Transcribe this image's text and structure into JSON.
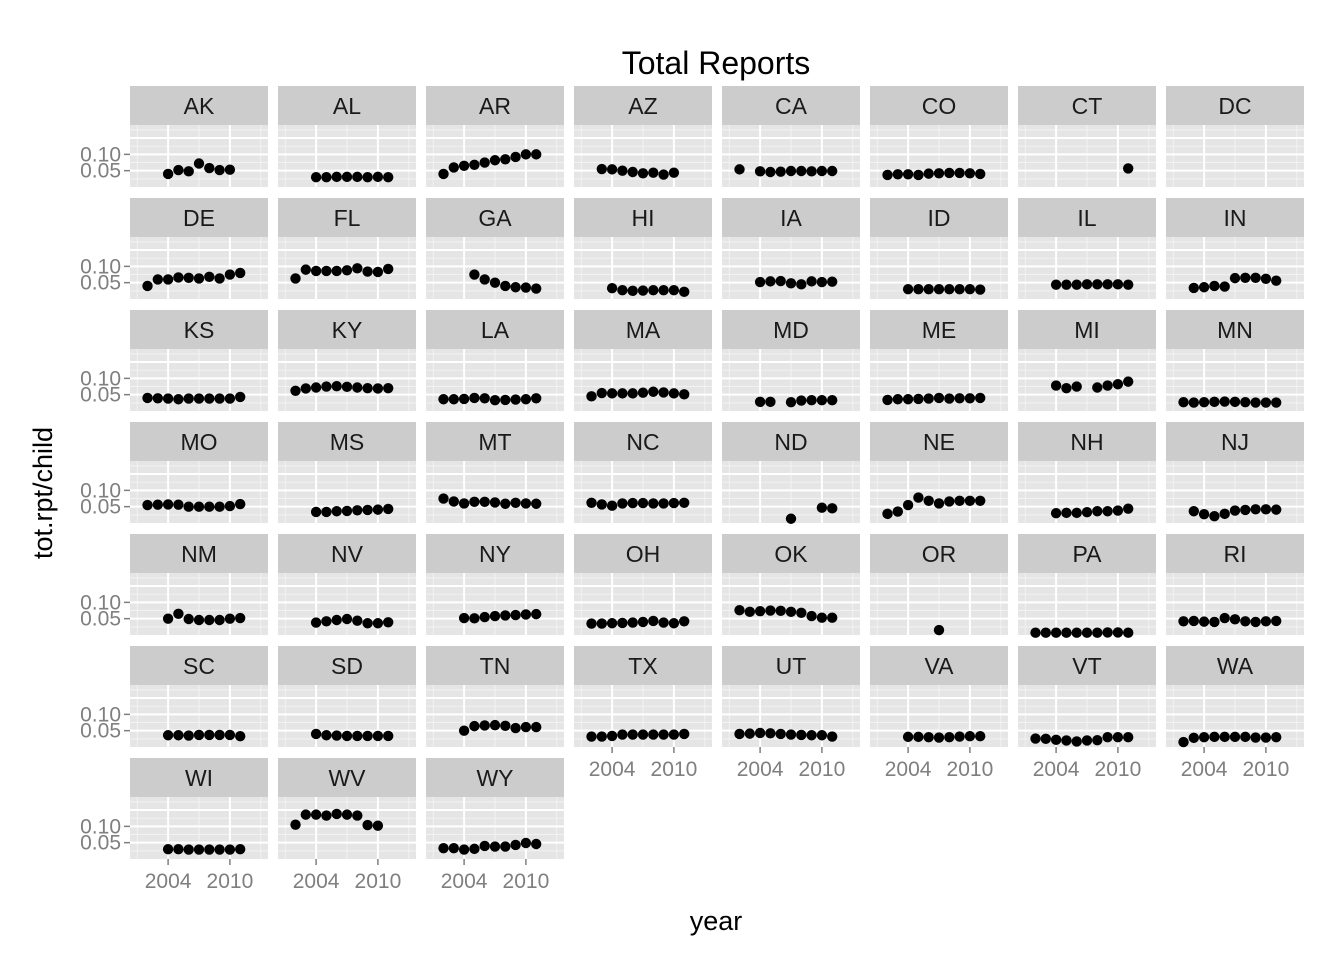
{
  "chart_data": {
    "type": "scatter",
    "title": "Total Reports",
    "xlabel": "year",
    "ylabel": "tot.rpt/child",
    "x_ticks": [
      2004,
      2010
    ],
    "y_ticks": [
      0.05,
      0.1
    ],
    "y_tick_labels": [
      "0.05",
      "0.10"
    ],
    "x_tick_labels": [
      "2004",
      "2010"
    ],
    "xlim": [
      2000.3,
      2013.7
    ],
    "ylim": [
      0.0,
      0.19
    ],
    "layout": "facet_wrap, 8 columns",
    "panel_background": "#e5e5e5",
    "strip_background": "#cccccc",
    "point_color": "#000000",
    "facets": [
      {
        "label": "AK",
        "years": [
          2003,
          2004,
          2005,
          2006,
          2007,
          2008,
          2009,
          2010,
          2011,
          2012
        ],
        "values": [
          null,
          0.04,
          0.052,
          0.048,
          0.072,
          0.058,
          0.052,
          0.053,
          null,
          null
        ]
      },
      {
        "label": "AL",
        "years": [
          2004,
          2005,
          2006,
          2007,
          2008,
          2009,
          2010,
          2011
        ],
        "values": [
          0.03,
          0.03,
          0.031,
          0.031,
          0.031,
          0.03,
          0.031,
          0.03
        ]
      },
      {
        "label": "AR",
        "years": [
          2002,
          2003,
          2004,
          2005,
          2006,
          2007,
          2008,
          2009,
          2010,
          2011
        ],
        "values": [
          0.04,
          0.06,
          0.065,
          0.068,
          0.075,
          0.082,
          0.085,
          0.092,
          0.1,
          0.1
        ]
      },
      {
        "label": "AZ",
        "years": [
          2003,
          2004,
          2005,
          2006,
          2007,
          2008,
          2009,
          2010
        ],
        "values": [
          0.055,
          0.054,
          0.05,
          0.046,
          0.042,
          0.044,
          0.038,
          0.044
        ]
      },
      {
        "label": "CA",
        "years": [
          2002,
          2004,
          2005,
          2006,
          2007,
          2008,
          2009,
          2010,
          2011
        ],
        "values": [
          0.054,
          0.048,
          0.046,
          0.047,
          0.049,
          0.049,
          0.048,
          0.049,
          0.049
        ]
      },
      {
        "label": "CO",
        "years": [
          2002,
          2003,
          2004,
          2005,
          2006,
          2007,
          2008,
          2009,
          2010,
          2011
        ],
        "values": [
          0.037,
          0.039,
          0.039,
          0.037,
          0.041,
          0.042,
          0.043,
          0.043,
          0.042,
          0.04
        ]
      },
      {
        "label": "CT",
        "years": [
          2011
        ],
        "values": [
          0.057
        ]
      },
      {
        "label": "DC",
        "years": [],
        "values": []
      },
      {
        "label": "DE",
        "years": [
          2002,
          2003,
          2004,
          2005,
          2006,
          2007,
          2008,
          2009,
          2010,
          2011
        ],
        "values": [
          0.04,
          0.06,
          0.06,
          0.066,
          0.065,
          0.063,
          0.068,
          0.063,
          0.075,
          0.08
        ]
      },
      {
        "label": "FL",
        "years": [
          2002,
          2003,
          2004,
          2005,
          2006,
          2007,
          2008,
          2009,
          2010,
          2011
        ],
        "values": [
          0.063,
          0.09,
          0.086,
          0.086,
          0.086,
          0.088,
          0.094,
          0.084,
          0.083,
          0.092
        ]
      },
      {
        "label": "GA",
        "years": [
          2005,
          2006,
          2007,
          2008,
          2009,
          2010,
          2011
        ],
        "values": [
          0.075,
          0.06,
          0.05,
          0.04,
          0.036,
          0.035,
          0.032
        ]
      },
      {
        "label": "HI",
        "years": [
          2004,
          2005,
          2006,
          2007,
          2008,
          2009,
          2010,
          2011
        ],
        "values": [
          0.033,
          0.027,
          0.025,
          0.026,
          0.027,
          0.027,
          0.027,
          0.022
        ]
      },
      {
        "label": "IA",
        "years": [
          2004,
          2005,
          2006,
          2007,
          2008,
          2009,
          2010,
          2011
        ],
        "values": [
          0.052,
          0.054,
          0.055,
          0.048,
          0.045,
          0.054,
          0.052,
          0.053
        ]
      },
      {
        "label": "ID",
        "years": [
          2004,
          2005,
          2006,
          2007,
          2008,
          2009,
          2010,
          2011
        ],
        "values": [
          0.03,
          0.03,
          0.03,
          0.03,
          0.03,
          0.03,
          0.03,
          0.029
        ]
      },
      {
        "label": "IL",
        "years": [
          2004,
          2005,
          2006,
          2007,
          2008,
          2009,
          2010,
          2011
        ],
        "values": [
          0.044,
          0.044,
          0.044,
          0.045,
          0.045,
          0.045,
          0.045,
          0.044
        ]
      },
      {
        "label": "IN",
        "years": [
          2003,
          2004,
          2005,
          2006,
          2007,
          2008,
          2009,
          2010,
          2011
        ],
        "values": [
          0.034,
          0.036,
          0.04,
          0.038,
          0.064,
          0.065,
          0.065,
          0.062,
          0.056
        ]
      },
      {
        "label": "KS",
        "years": [
          2002,
          2003,
          2004,
          2005,
          2006,
          2007,
          2008,
          2009,
          2010,
          2011
        ],
        "values": [
          0.04,
          0.039,
          0.038,
          0.036,
          0.038,
          0.038,
          0.038,
          0.038,
          0.038,
          0.043
        ]
      },
      {
        "label": "KY",
        "years": [
          2002,
          2003,
          2004,
          2005,
          2006,
          2007,
          2008,
          2009,
          2010,
          2011
        ],
        "values": [
          0.062,
          0.069,
          0.072,
          0.075,
          0.076,
          0.074,
          0.072,
          0.07,
          0.069,
          0.07
        ]
      },
      {
        "label": "LA",
        "years": [
          2002,
          2003,
          2004,
          2005,
          2006,
          2007,
          2008,
          2009,
          2010,
          2011
        ],
        "values": [
          0.036,
          0.036,
          0.037,
          0.04,
          0.039,
          0.033,
          0.034,
          0.035,
          0.036,
          0.039
        ]
      },
      {
        "label": "MA",
        "years": [
          2002,
          2003,
          2004,
          2005,
          2006,
          2007,
          2008,
          2009,
          2010,
          2011
        ],
        "values": [
          0.045,
          0.055,
          0.054,
          0.054,
          0.054,
          0.056,
          0.059,
          0.057,
          0.054,
          0.051
        ]
      },
      {
        "label": "MD",
        "years": [
          2004,
          2005,
          2007,
          2008,
          2009,
          2010,
          2011
        ],
        "values": [
          0.028,
          0.028,
          0.027,
          0.032,
          0.033,
          0.033,
          0.033
        ]
      },
      {
        "label": "ME",
        "years": [
          2002,
          2003,
          2004,
          2005,
          2006,
          2007,
          2008,
          2009,
          2010,
          2011
        ],
        "values": [
          0.034,
          0.036,
          0.036,
          0.037,
          0.038,
          0.04,
          0.038,
          0.039,
          0.039,
          0.04
        ]
      },
      {
        "label": "MI",
        "years": [
          2004,
          2005,
          2006,
          2008,
          2009,
          2010,
          2011
        ],
        "values": [
          0.078,
          0.07,
          0.075,
          0.072,
          0.078,
          0.082,
          0.09
        ]
      },
      {
        "label": "MN",
        "years": [
          2002,
          2003,
          2004,
          2005,
          2006,
          2007,
          2008,
          2009,
          2010,
          2011
        ],
        "values": [
          0.027,
          0.026,
          0.027,
          0.028,
          0.029,
          0.028,
          0.027,
          0.026,
          0.026,
          0.026
        ]
      },
      {
        "label": "MO",
        "years": [
          2002,
          2003,
          2004,
          2005,
          2006,
          2007,
          2008,
          2009,
          2010,
          2011
        ],
        "values": [
          0.055,
          0.056,
          0.057,
          0.056,
          0.05,
          0.05,
          0.05,
          0.05,
          0.052,
          0.058
        ]
      },
      {
        "label": "MS",
        "years": [
          2004,
          2005,
          2006,
          2007,
          2008,
          2009,
          2010,
          2011
        ],
        "values": [
          0.034,
          0.034,
          0.036,
          0.037,
          0.039,
          0.04,
          0.041,
          0.043
        ]
      },
      {
        "label": "MT",
        "years": [
          2002,
          2003,
          2004,
          2005,
          2006,
          2007,
          2008,
          2009,
          2010,
          2011
        ],
        "values": [
          0.075,
          0.066,
          0.06,
          0.065,
          0.065,
          0.063,
          0.059,
          0.062,
          0.06,
          0.059
        ]
      },
      {
        "label": "NC",
        "years": [
          2002,
          2003,
          2004,
          2005,
          2006,
          2007,
          2008,
          2009,
          2010,
          2011
        ],
        "values": [
          0.062,
          0.057,
          0.053,
          0.06,
          0.061,
          0.061,
          0.06,
          0.06,
          0.061,
          0.062
        ]
      },
      {
        "label": "ND",
        "years": [
          2007,
          2010,
          2011
        ],
        "values": [
          0.013,
          0.047,
          0.045
        ]
      },
      {
        "label": "NE",
        "years": [
          2002,
          2003,
          2004,
          2005,
          2006,
          2007,
          2008,
          2009,
          2010,
          2011
        ],
        "values": [
          0.028,
          0.035,
          0.055,
          0.078,
          0.068,
          0.06,
          0.066,
          0.068,
          0.068,
          0.068
        ]
      },
      {
        "label": "NH",
        "years": [
          2004,
          2005,
          2006,
          2007,
          2008,
          2009,
          2010,
          2011
        ],
        "values": [
          0.03,
          0.031,
          0.031,
          0.033,
          0.036,
          0.036,
          0.038,
          0.044
        ]
      },
      {
        "label": "NJ",
        "years": [
          2003,
          2004,
          2005,
          2006,
          2007,
          2008,
          2009,
          2010,
          2011
        ],
        "values": [
          0.036,
          0.027,
          0.021,
          0.028,
          0.038,
          0.04,
          0.042,
          0.042,
          0.041
        ]
      },
      {
        "label": "NM",
        "years": [
          2004,
          2005,
          2006,
          2007,
          2008,
          2009,
          2010,
          2011
        ],
        "values": [
          0.05,
          0.065,
          0.049,
          0.046,
          0.046,
          0.046,
          0.05,
          0.052
        ]
      },
      {
        "label": "NV",
        "years": [
          2004,
          2005,
          2006,
          2007,
          2008,
          2009,
          2010,
          2011
        ],
        "values": [
          0.038,
          0.042,
          0.046,
          0.049,
          0.044,
          0.036,
          0.036,
          0.039
        ]
      },
      {
        "label": "NY",
        "years": [
          2004,
          2005,
          2006,
          2007,
          2008,
          2009,
          2010,
          2011
        ],
        "values": [
          0.052,
          0.051,
          0.055,
          0.058,
          0.06,
          0.061,
          0.063,
          0.064
        ]
      },
      {
        "label": "OH",
        "years": [
          2002,
          2003,
          2004,
          2005,
          2006,
          2007,
          2008,
          2009,
          2010,
          2011
        ],
        "values": [
          0.035,
          0.035,
          0.036,
          0.037,
          0.038,
          0.04,
          0.043,
          0.038,
          0.036,
          0.042
        ]
      },
      {
        "label": "OK",
        "years": [
          2002,
          2003,
          2004,
          2005,
          2006,
          2007,
          2008,
          2009,
          2010,
          2011
        ],
        "values": [
          0.076,
          0.071,
          0.073,
          0.075,
          0.074,
          0.071,
          0.068,
          0.058,
          0.053,
          0.053
        ]
      },
      {
        "label": "OR",
        "years": [
          2007
        ],
        "values": [
          0.015
        ]
      },
      {
        "label": "PA",
        "years": [
          2002,
          2003,
          2004,
          2005,
          2006,
          2007,
          2008,
          2009,
          2010,
          2011
        ],
        "values": [
          0.007,
          0.007,
          0.007,
          0.007,
          0.007,
          0.007,
          0.007,
          0.008,
          0.008,
          0.007
        ]
      },
      {
        "label": "RI",
        "years": [
          2002,
          2003,
          2004,
          2005,
          2006,
          2007,
          2008,
          2009,
          2010,
          2011
        ],
        "values": [
          0.042,
          0.043,
          0.041,
          0.04,
          0.052,
          0.048,
          0.042,
          0.04,
          0.042,
          0.043
        ]
      },
      {
        "label": "SC",
        "years": [
          2004,
          2005,
          2006,
          2007,
          2008,
          2009,
          2010,
          2011
        ],
        "values": [
          0.036,
          0.036,
          0.035,
          0.037,
          0.037,
          0.037,
          0.037,
          0.033
        ]
      },
      {
        "label": "SD",
        "years": [
          2004,
          2005,
          2006,
          2007,
          2008,
          2009,
          2010,
          2011
        ],
        "values": [
          0.04,
          0.036,
          0.035,
          0.034,
          0.034,
          0.034,
          0.034,
          0.034
        ]
      },
      {
        "label": "TN",
        "years": [
          2004,
          2005,
          2006,
          2007,
          2008,
          2009,
          2010,
          2011
        ],
        "values": [
          0.05,
          0.064,
          0.066,
          0.067,
          0.065,
          0.058,
          0.061,
          0.061
        ]
      },
      {
        "label": "TX",
        "years": [
          2002,
          2003,
          2004,
          2005,
          2006,
          2007,
          2008,
          2009,
          2010,
          2011
        ],
        "values": [
          0.032,
          0.032,
          0.034,
          0.038,
          0.038,
          0.038,
          0.038,
          0.038,
          0.038,
          0.04
        ]
      },
      {
        "label": "UT",
        "years": [
          2002,
          2003,
          2004,
          2005,
          2006,
          2007,
          2008,
          2009,
          2010,
          2011
        ],
        "values": [
          0.04,
          0.041,
          0.043,
          0.042,
          0.04,
          0.038,
          0.037,
          0.036,
          0.036,
          0.032
        ]
      },
      {
        "label": "VA",
        "years": [
          2004,
          2005,
          2006,
          2007,
          2008,
          2009,
          2010,
          2011
        ],
        "values": [
          0.031,
          0.031,
          0.03,
          0.029,
          0.03,
          0.032,
          0.033,
          0.033
        ]
      },
      {
        "label": "VT",
        "years": [
          2002,
          2003,
          2004,
          2005,
          2006,
          2007,
          2008,
          2009,
          2010,
          2011
        ],
        "values": [
          0.026,
          0.025,
          0.022,
          0.02,
          0.017,
          0.02,
          0.021,
          0.03,
          0.03,
          0.03
        ]
      },
      {
        "label": "WA",
        "years": [
          2002,
          2003,
          2004,
          2005,
          2006,
          2007,
          2008,
          2009,
          2010,
          2011
        ],
        "values": [
          0.015,
          0.028,
          0.03,
          0.031,
          0.031,
          0.031,
          0.031,
          0.029,
          0.029,
          0.03
        ]
      },
      {
        "label": "WI",
        "years": [
          2004,
          2005,
          2006,
          2007,
          2008,
          2009,
          2010,
          2011
        ],
        "values": [
          0.03,
          0.03,
          0.029,
          0.029,
          0.029,
          0.029,
          0.029,
          0.03
        ]
      },
      {
        "label": "WV",
        "years": [
          2002,
          2003,
          2004,
          2005,
          2006,
          2007,
          2008,
          2009,
          2010,
          2011
        ],
        "values": [
          0.105,
          0.136,
          0.136,
          0.133,
          0.138,
          0.136,
          0.133,
          0.104,
          0.102,
          null
        ]
      },
      {
        "label": "WY",
        "years": [
          2002,
          2003,
          2004,
          2005,
          2006,
          2007,
          2008,
          2009,
          2010,
          2011
        ],
        "values": [
          0.033,
          0.033,
          0.029,
          0.031,
          0.04,
          0.038,
          0.038,
          0.043,
          0.049,
          0.046
        ]
      }
    ]
  }
}
